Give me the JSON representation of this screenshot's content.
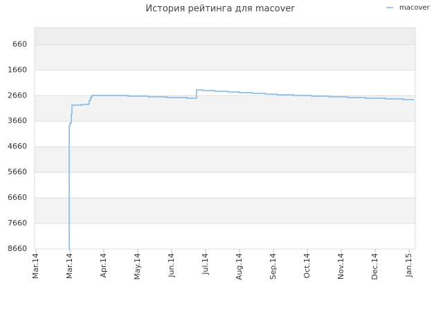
{
  "chart_data": {
    "type": "line",
    "title": "История рейтинга для macover",
    "x_ticks_note_free": null,
    "xlim": [
      -0.04,
      11.18
    ],
    "xticks": [
      {
        "value": 0,
        "label": "Mar.14"
      },
      {
        "value": 1,
        "label": "Mar.14"
      },
      {
        "value": 2,
        "label": "Apr.14"
      },
      {
        "value": 3,
        "label": "May.14"
      },
      {
        "value": 4,
        "label": "Jun.14"
      },
      {
        "value": 5,
        "label": "Jul.14"
      },
      {
        "value": 6,
        "label": "Aug.14"
      },
      {
        "value": 7,
        "label": "Sep.14"
      },
      {
        "value": 8,
        "label": "Oct.14"
      },
      {
        "value": 9,
        "label": "Nov.14"
      },
      {
        "value": 10,
        "label": "Dec.14"
      },
      {
        "value": 11,
        "label": "Jan.15"
      }
    ],
    "ylim": [
      8660,
      0
    ],
    "inverted_y": true,
    "yticks": [
      660,
      1660,
      2660,
      3660,
      4660,
      5660,
      6660,
      7660,
      8660
    ],
    "grid": true,
    "legend": "top-right",
    "step": true,
    "series": [
      {
        "name": "macover",
        "color": "#7cb5ec",
        "x": [
          0.97,
          0.98,
          1.0,
          1.04,
          1.06,
          1.35,
          1.55,
          1.57,
          1.61,
          1.65,
          2.71,
          3.31,
          3.86,
          4.45,
          4.73,
          4.9,
          5.27,
          5.67,
          6.0,
          6.37,
          6.76,
          7.1,
          7.59,
          8.12,
          8.65,
          9.18,
          9.71,
          10.29,
          10.82,
          11.12
        ],
        "values": [
          8660,
          3843,
          3735,
          3383,
          3031,
          3004,
          2977,
          2841,
          2733,
          2652,
          2679,
          2706,
          2733,
          2760,
          2436,
          2463,
          2490,
          2517,
          2544,
          2571,
          2598,
          2625,
          2652,
          2679,
          2706,
          2733,
          2760,
          2787,
          2814,
          2841
        ]
      }
    ]
  }
}
